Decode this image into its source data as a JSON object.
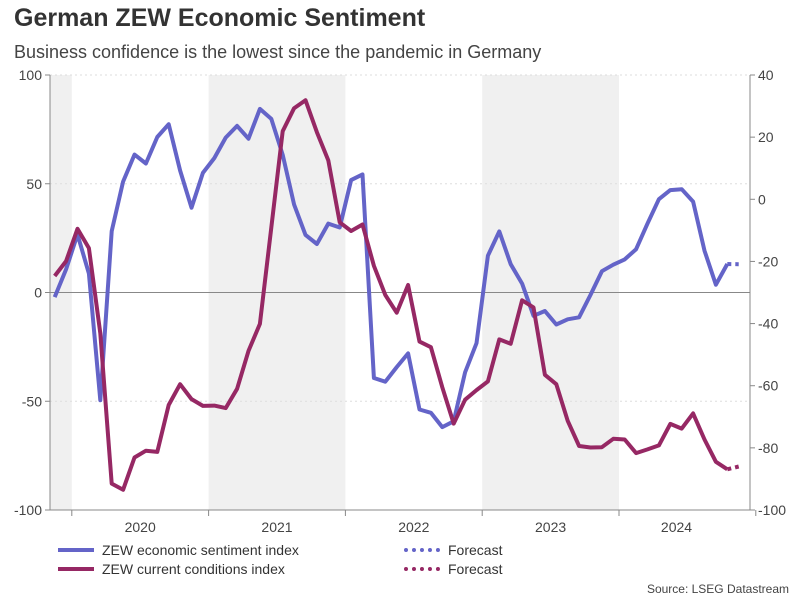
{
  "chart_data": {
    "type": "line",
    "title": "German ZEW Economic Sentiment",
    "subtitle": "Business confidence is the lowest since the pandemic in Germany",
    "source": "Source: LSEG Datastream",
    "x_tick_labels": [
      "2020",
      "2021",
      "2022",
      "2023",
      "2024"
    ],
    "y_left": {
      "range": [
        -100,
        100
      ],
      "ticks": [
        100,
        50,
        0,
        -50,
        -100
      ]
    },
    "y_right": {
      "range": [
        -100,
        40
      ],
      "ticks": [
        40,
        20,
        0,
        -20,
        -40,
        -60,
        -80,
        -100
      ]
    },
    "grid": true,
    "legend_placement": "bottom",
    "shaded_years": [
      "2019",
      "2021",
      "2023"
    ],
    "months": [
      "2019-11",
      "2019-12",
      "2020-01",
      "2020-02",
      "2020-03",
      "2020-04",
      "2020-05",
      "2020-06",
      "2020-07",
      "2020-08",
      "2020-09",
      "2020-10",
      "2020-11",
      "2020-12",
      "2021-01",
      "2021-02",
      "2021-03",
      "2021-04",
      "2021-05",
      "2021-06",
      "2021-07",
      "2021-08",
      "2021-09",
      "2021-10",
      "2021-11",
      "2021-12",
      "2022-01",
      "2022-02",
      "2022-03",
      "2022-04",
      "2022-05",
      "2022-06",
      "2022-07",
      "2022-08",
      "2022-09",
      "2022-10",
      "2022-11",
      "2022-12",
      "2023-01",
      "2023-02",
      "2023-03",
      "2023-04",
      "2023-05",
      "2023-06",
      "2023-07",
      "2023-08",
      "2023-09",
      "2023-10",
      "2023-11",
      "2023-12",
      "2024-01",
      "2024-02",
      "2024-03",
      "2024-04",
      "2024-05",
      "2024-06",
      "2024-07",
      "2024-08",
      "2024-09",
      "2024-10"
    ],
    "series": [
      {
        "name": "ZEW economic sentiment index",
        "axis": "left",
        "color": "#6464c8",
        "values": [
          -2.1,
          10.7,
          26.7,
          8.7,
          -49.5,
          28.2,
          51,
          63.4,
          59.3,
          71.5,
          77.4,
          56.1,
          39,
          55,
          61.8,
          71.2,
          76.6,
          70.7,
          84.4,
          79.8,
          63.3,
          40.4,
          26.5,
          22.3,
          31.7,
          29.9,
          51.7,
          54.3,
          -39.3,
          -41,
          -34.3,
          -28,
          -53.8,
          -55.3,
          -61.9,
          -59.2,
          -36.7,
          -23.3,
          16.9,
          28.1,
          13,
          4.1,
          -10.7,
          -8.5,
          -14.7,
          -12.3,
          -11.4,
          -1.1,
          9.8,
          12.8,
          15.2,
          19.9,
          31.7,
          42.9,
          47.1,
          47.5,
          41.8,
          19.2,
          3.6,
          13.1
        ],
        "forecast": {
          "name": "Forecast",
          "months": [
            "2024-10",
            "2024-11"
          ],
          "values": [
            13.1,
            13
          ]
        }
      },
      {
        "name": "ZEW current conditions index",
        "axis": "right",
        "color": "#962864",
        "values": [
          -24.7,
          -19.9,
          -9.5,
          -15.7,
          -43.1,
          -91.5,
          -93.5,
          -83.1,
          -80.9,
          -81.3,
          -66.2,
          -59.5,
          -64.3,
          -66.5,
          -66.4,
          -67.2,
          -61,
          -48.8,
          -40.1,
          -9.1,
          21.9,
          29.3,
          31.9,
          21.6,
          12.5,
          -7.4,
          -10.2,
          -8.1,
          -21.4,
          -30.8,
          -36.5,
          -27.6,
          -45.8,
          -47.6,
          -60.5,
          -72.2,
          -64.5,
          -61.4,
          -58.6,
          -45.1,
          -46.5,
          -32.5,
          -34.8,
          -56.5,
          -59.5,
          -71.3,
          -79.4,
          -79.9,
          -79.8,
          -77.1,
          -77.3,
          -81.7,
          -80.5,
          -79.2,
          -72.3,
          -73.8,
          -68.9,
          -77.3,
          -84.5,
          -86.9
        ],
        "forecast": {
          "name": "Forecast",
          "months": [
            "2024-10",
            "2024-11"
          ],
          "values": [
            -86.9,
            -86
          ]
        }
      }
    ]
  }
}
